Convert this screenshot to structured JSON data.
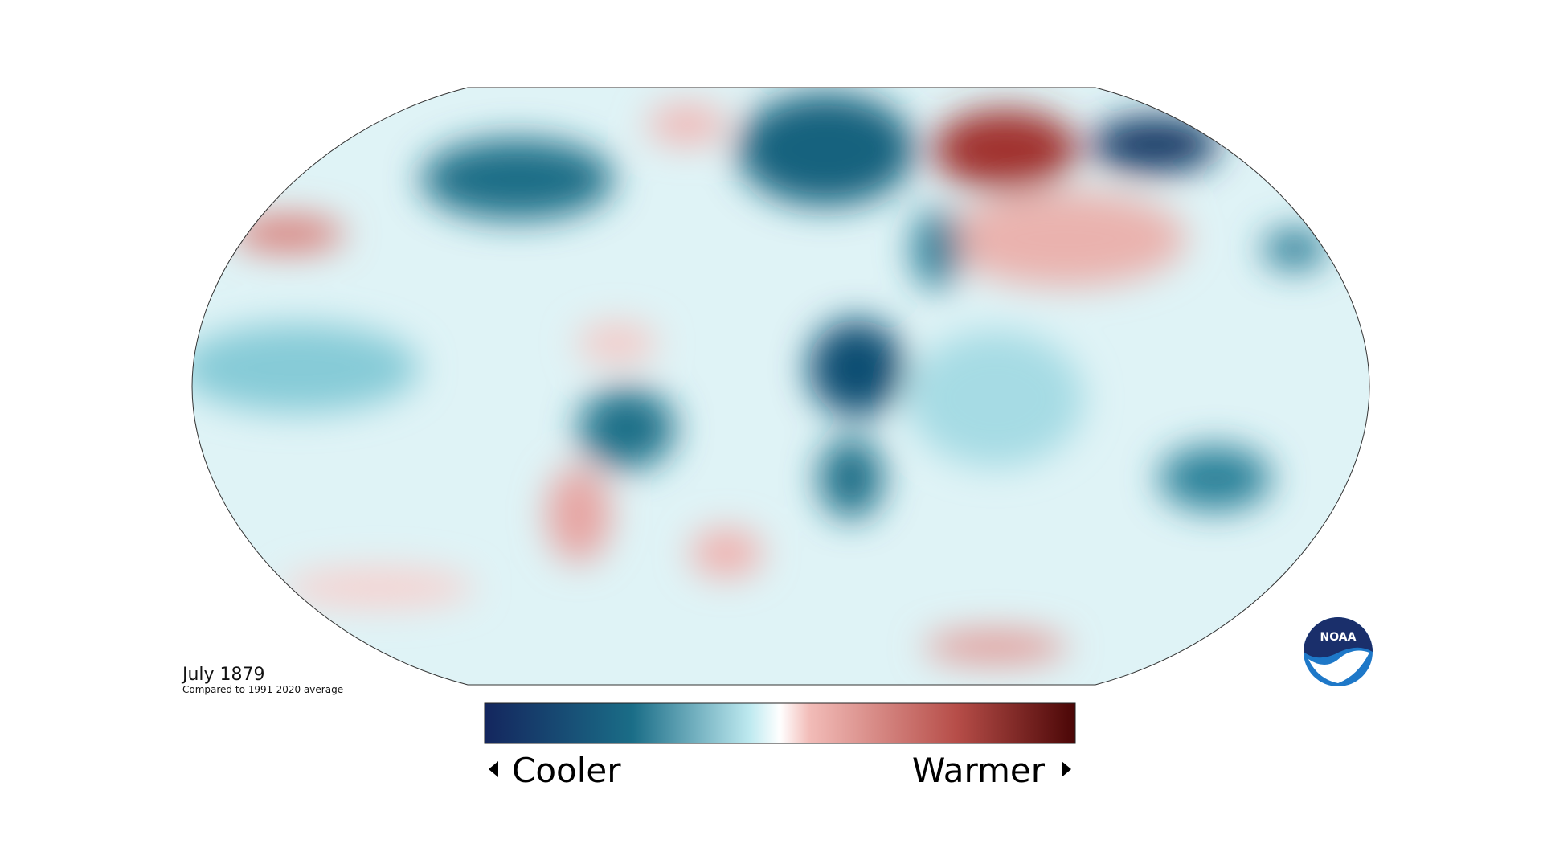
{
  "map": {
    "title": "July 1879",
    "subtitle": "Compared to 1991-2020 average",
    "legend": {
      "low_label": "Cooler",
      "high_label": "Warmer"
    },
    "logo": "NOAA"
  }
}
